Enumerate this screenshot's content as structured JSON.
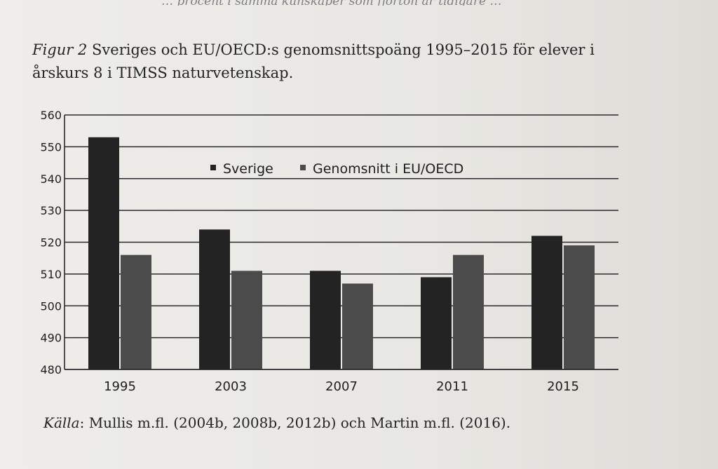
{
  "page": {
    "cut_line": "… procent i samma kunskaper som fjorton år tidigare …",
    "figure_label": "Figur 2",
    "caption_text": "Sveriges och EU/OECD:s genomsnittspoäng 1995–2015 för elever i årskurs 8 i TIMSS naturvetenskap.",
    "source_label": "Källa",
    "source_text": ": Mullis m.fl. (2004b, 2008b, 2012b) och Martin m.fl. (2016)."
  },
  "chart_data": {
    "type": "bar",
    "categories": [
      "1995",
      "2003",
      "2007",
      "2011",
      "2015"
    ],
    "series": [
      {
        "name": "Sverige",
        "color": "#232323",
        "values": [
          553,
          524,
          511,
          509,
          522
        ]
      },
      {
        "name": "Genomsnitt i EU/OECD",
        "color": "#4b4b4b",
        "values": [
          516,
          511,
          507,
          516,
          519
        ]
      }
    ],
    "ylim": [
      480,
      560
    ],
    "yticks": [
      480,
      490,
      500,
      510,
      520,
      530,
      540,
      550,
      560
    ],
    "grid": true,
    "legend_position": "top-center"
  }
}
